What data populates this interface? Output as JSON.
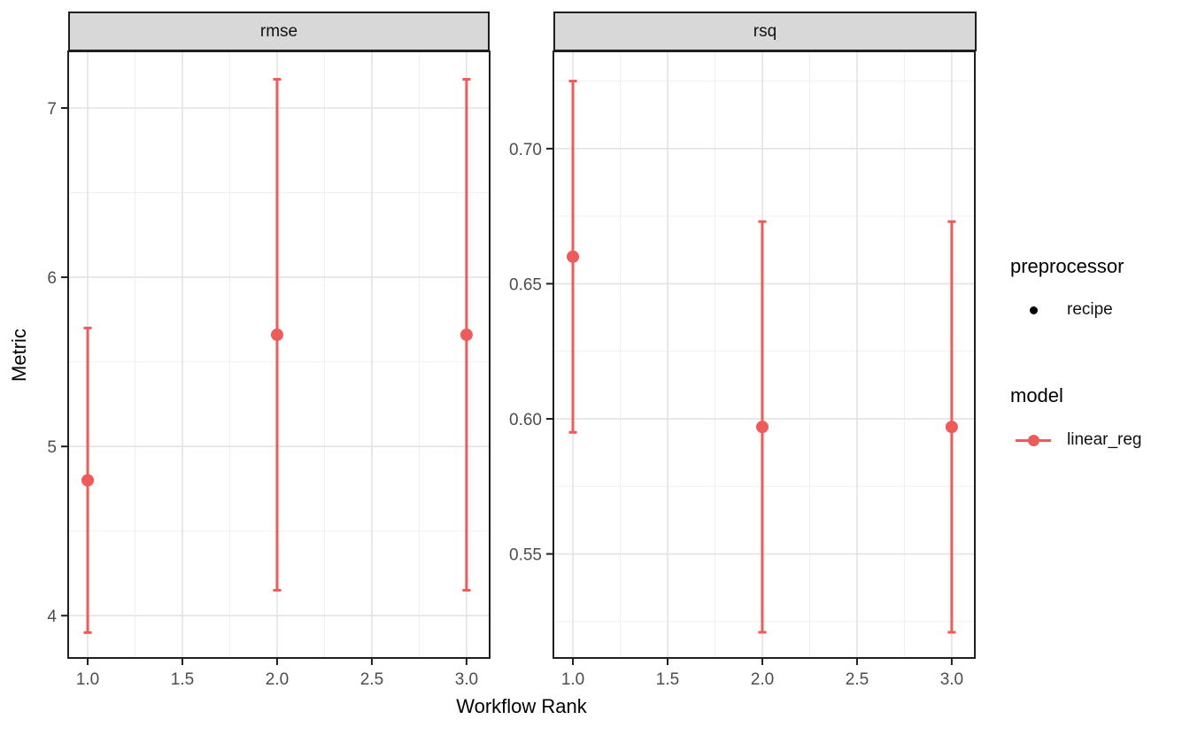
{
  "figure": {
    "y_axis_title": "Metric",
    "x_axis_title": "Workflow Rank",
    "legend": {
      "preprocessor_title": "preprocessor",
      "preprocessor_items": [
        {
          "label": "recipe",
          "marker": "black-dot-icon"
        }
      ],
      "model_title": "model",
      "model_items": [
        {
          "label": "linear_reg",
          "marker": "red-line-dot-icon"
        }
      ]
    },
    "colors": {
      "series": "#F05A58",
      "strip_fill": "#D8D8D8",
      "panel_border": "#1f1f1f",
      "grid_major": "#E3E3E3",
      "grid_minor": "#F0F0F0",
      "tick_mark": "#1f1f1f",
      "tick_label": "#4d4d4d",
      "legend_dot": "#000000"
    }
  },
  "chart_data": [
    {
      "type": "scatter",
      "facet": "rmse",
      "series": "linear_reg",
      "x": [
        1.0,
        2.0,
        3.0
      ],
      "y": [
        4.8,
        5.66,
        5.66
      ],
      "y_lo": [
        3.9,
        4.15,
        4.15
      ],
      "y_hi": [
        5.7,
        7.17,
        7.17
      ],
      "x_ticks": [
        1.0,
        1.5,
        2.0,
        2.5,
        3.0
      ],
      "x_tick_labels": [
        "1.0",
        "1.5",
        "2.0",
        "2.5",
        "3.0"
      ],
      "x_minor": [
        1.25,
        1.75,
        2.25,
        2.75
      ],
      "y_ticks": [
        4,
        5,
        6,
        7
      ],
      "y_tick_labels": [
        "4",
        "5",
        "6",
        "7"
      ],
      "y_minor": [
        4.5,
        5.5,
        6.5
      ],
      "xlim": [
        0.897,
        3.122
      ],
      "ylim": [
        3.75,
        7.335
      ]
    },
    {
      "type": "scatter",
      "facet": "rsq",
      "series": "linear_reg",
      "x": [
        1.0,
        2.0,
        3.0
      ],
      "y": [
        0.66,
        0.597,
        0.597
      ],
      "y_lo": [
        0.595,
        0.521,
        0.521
      ],
      "y_hi": [
        0.725,
        0.673,
        0.673
      ],
      "x_ticks": [
        1.0,
        1.5,
        2.0,
        2.5,
        3.0
      ],
      "x_tick_labels": [
        "1.0",
        "1.5",
        "2.0",
        "2.5",
        "3.0"
      ],
      "x_minor": [
        1.25,
        1.75,
        2.25,
        2.75
      ],
      "y_ticks": [
        0.55,
        0.6,
        0.65,
        0.7
      ],
      "y_tick_labels": [
        "0.55",
        "0.60",
        "0.65",
        "0.70"
      ],
      "y_minor": [
        0.525,
        0.575,
        0.625,
        0.675,
        0.725
      ],
      "xlim": [
        0.897,
        3.122
      ],
      "ylim": [
        0.5115,
        0.736
      ]
    }
  ]
}
